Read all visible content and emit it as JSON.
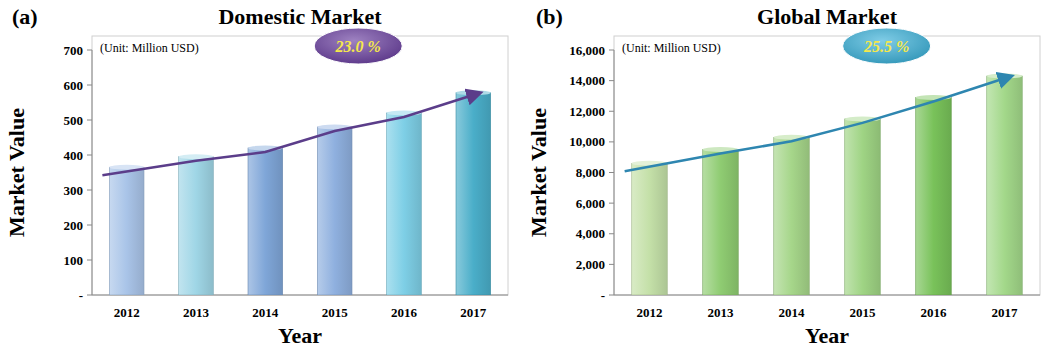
{
  "chart_data": [
    {
      "type": "bar",
      "panel_label": "(a)",
      "title": "Domestic Market",
      "unit_note": "(Unit: Million USD)",
      "growth_label": "23.0 %",
      "x_label": "Year",
      "y_label": "Market Value",
      "categories": [
        "2012",
        "2013",
        "2014",
        "2015",
        "2016",
        "2017"
      ],
      "values": [
        365,
        395,
        420,
        480,
        520,
        578
      ],
      "colors": [
        "#a9c4e8",
        "#9fd6e6",
        "#7fa6d8",
        "#8fb0df",
        "#7ecfe6",
        "#4aaec9"
      ],
      "trend_color": "#5b3d8a",
      "growth_color": "#6a3fa0",
      "ylim": [
        0,
        700
      ],
      "yticks": [
        {
          "value": 0,
          "label": "-"
        },
        100,
        200,
        300,
        400,
        500,
        600,
        700
      ],
      "grid": false
    },
    {
      "type": "bar",
      "panel_label": "(b)",
      "title": "Global Market",
      "unit_note": "(Unit: Million USD)",
      "growth_label": "25.5 %",
      "x_label": "Year",
      "y_label": "Market Value",
      "categories": [
        "2012",
        "2013",
        "2014",
        "2015",
        "2016",
        "2017"
      ],
      "values": [
        8600,
        9500,
        10300,
        11500,
        12900,
        14300
      ],
      "colors": [
        "#c4e0a8",
        "#8fcc72",
        "#a6d68a",
        "#9fd484",
        "#79c25a",
        "#a3d88a"
      ],
      "trend_color": "#2e86b0",
      "growth_color": "#3ab0d8",
      "ylim": [
        0,
        16000
      ],
      "yticks": [
        {
          "value": 0,
          "label": "-"
        },
        {
          "value": 2000,
          "label": "2,000"
        },
        {
          "value": 4000,
          "label": "4,000"
        },
        {
          "value": 6000,
          "label": "6,000"
        },
        {
          "value": 8000,
          "label": "8,000"
        },
        {
          "value": 10000,
          "label": "10,000"
        },
        {
          "value": 12000,
          "label": "12,000"
        },
        {
          "value": 14000,
          "label": "14,000"
        },
        {
          "value": 16000,
          "label": "16,000"
        }
      ],
      "grid": false
    }
  ]
}
